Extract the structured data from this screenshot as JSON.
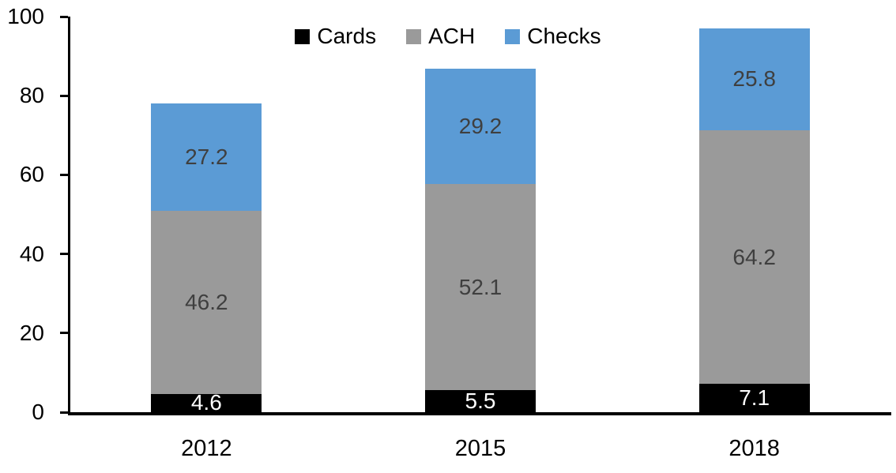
{
  "chart_data": {
    "type": "bar",
    "stacked": true,
    "categories": [
      "2012",
      "2015",
      "2018"
    ],
    "series": [
      {
        "name": "Cards",
        "color": "#000000",
        "label_color": "#FFFFFF",
        "values": [
          4.6,
          5.5,
          7.1
        ]
      },
      {
        "name": "ACH",
        "color": "#9A9A9A",
        "label_color": "#3F3F3F",
        "values": [
          46.2,
          52.1,
          64.2
        ]
      },
      {
        "name": "Checks",
        "color": "#5B9BD5",
        "label_color": "#3F3F3F",
        "values": [
          27.2,
          29.2,
          25.8
        ]
      }
    ],
    "y_axis": {
      "ylim": [
        0,
        100
      ],
      "ticks": [
        0,
        20,
        40,
        60,
        80,
        100
      ]
    },
    "x_axis": {
      "tick_labels": [
        "2012",
        "2015",
        "2018"
      ]
    },
    "legend": {
      "position": "top-center",
      "entries": [
        "Cards",
        "ACH",
        "Checks"
      ]
    },
    "grid": false,
    "data_labels_shown": true,
    "axis_color": "#000000",
    "background_color": "#FFFFFF"
  }
}
